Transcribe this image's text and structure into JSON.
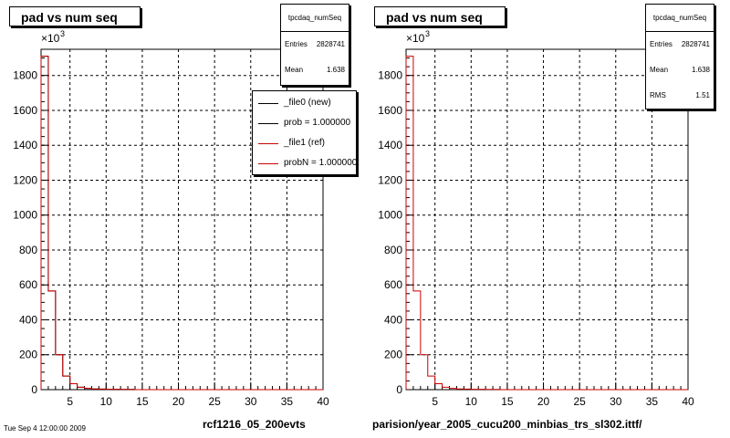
{
  "panels": [
    {
      "title": "pad vs num seq",
      "stats": {
        "name": "tpcdaq_numSeq",
        "rows": [
          {
            "label": "Entries",
            "value": "2828741"
          },
          {
            "label": "Mean",
            "value": "1.638"
          }
        ]
      },
      "legend": [
        {
          "text": "_file0 (new)",
          "color": "#000000"
        },
        {
          "text": "prob = 1.000000",
          "color": "#000000"
        },
        {
          "text": "_file1 (ref)",
          "color": "#cc0000"
        },
        {
          "text": "probN = 1.000000",
          "color": "#cc0000"
        }
      ],
      "footer": "rcf1216_05_200evts"
    },
    {
      "title": "pad vs num seq",
      "stats": {
        "name": "tpcdaq_numSeq",
        "rows": [
          {
            "label": "Entries",
            "value": "2828741"
          },
          {
            "label": "Mean",
            "value": "1.638"
          },
          {
            "label": "RMS",
            "value": "1.51"
          }
        ]
      },
      "legend": [],
      "footer": "parision/year_2005_cucu200_minbias_trs_sl302.ittf/"
    }
  ],
  "footer_small": "Tue Sep 4 12:00:00 2009",
  "chart_data": [
    {
      "type": "line",
      "title": "pad vs num seq",
      "multiplier_label": "×10",
      "multiplier_exp": "3",
      "xlim": [
        1,
        40
      ],
      "ylim": [
        0,
        1950
      ],
      "xticks": [
        "5",
        "10",
        "15",
        "20",
        "25",
        "30",
        "35",
        "40"
      ],
      "yticks": [
        "0",
        "200",
        "400",
        "600",
        "800",
        "1000",
        "1200",
        "1400",
        "1600",
        "1800"
      ],
      "grid": true,
      "series": [
        {
          "name": "_file0 (new)",
          "color": "#000000",
          "bin_edges": [
            1,
            2,
            3,
            4,
            5,
            6,
            7,
            8,
            9,
            10,
            11,
            12,
            13,
            14
          ],
          "values": [
            1910,
            565,
            200,
            78,
            34,
            14,
            7,
            4,
            3,
            2,
            2,
            1,
            1
          ]
        },
        {
          "name": "_file1 (ref)",
          "color": "#cc0000",
          "bin_edges": [
            1,
            2,
            3,
            4,
            5,
            6,
            7,
            8,
            9,
            10,
            11,
            12,
            13,
            14
          ],
          "values": [
            1910,
            565,
            200,
            78,
            34,
            14,
            7,
            4,
            3,
            2,
            2,
            1,
            1
          ]
        }
      ]
    },
    {
      "type": "line",
      "title": "pad vs num seq",
      "multiplier_label": "×10",
      "multiplier_exp": "3",
      "xlim": [
        1,
        40
      ],
      "ylim": [
        0,
        1950
      ],
      "xticks": [
        "5",
        "10",
        "15",
        "20",
        "25",
        "30",
        "35",
        "40"
      ],
      "yticks": [
        "0",
        "200",
        "400",
        "600",
        "800",
        "1000",
        "1200",
        "1400",
        "1600",
        "1800"
      ],
      "grid": true,
      "series": [
        {
          "color": "#cc0000",
          "bin_edges": [
            1,
            2,
            3,
            4,
            5,
            6,
            7,
            8,
            9,
            10,
            11,
            12,
            13,
            14
          ],
          "values": [
            1910,
            565,
            200,
            78,
            34,
            14,
            7,
            4,
            3,
            2,
            2,
            1,
            1
          ]
        }
      ]
    }
  ]
}
